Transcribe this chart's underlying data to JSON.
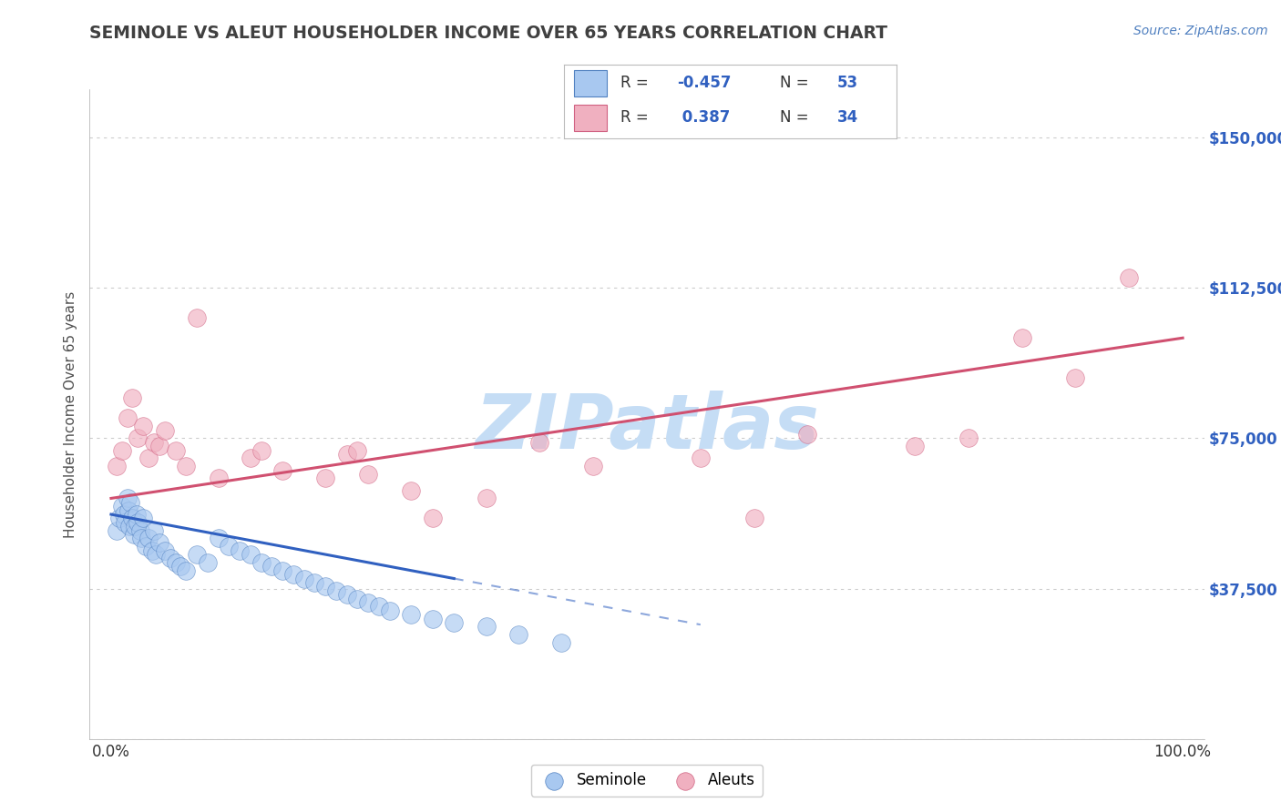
{
  "title": "SEMINOLE VS ALEUT HOUSEHOLDER INCOME OVER 65 YEARS CORRELATION CHART",
  "source_text": "Source: ZipAtlas.com",
  "ylabel": "Householder Income Over 65 years",
  "xlim": [
    -2,
    102
  ],
  "ylim": [
    0,
    162000
  ],
  "yticks": [
    0,
    37500,
    75000,
    112500,
    150000
  ],
  "legend_r1": "-0.457",
  "legend_n1": "53",
  "legend_r2": "0.387",
  "legend_n2": "34",
  "seminole_color": "#a8c8f0",
  "aleut_color": "#f0b0c0",
  "seminole_edge_color": "#5080c0",
  "aleut_edge_color": "#d06080",
  "seminole_line_color": "#3060c0",
  "aleut_line_color": "#d05070",
  "background_color": "#ffffff",
  "grid_color": "#cccccc",
  "title_color": "#404040",
  "axis_label_color": "#505050",
  "watermark_color": "#c5ddf5",
  "right_tick_color": "#3060c0",
  "seminole_x": [
    0.5,
    0.8,
    1.0,
    1.2,
    1.3,
    1.5,
    1.6,
    1.7,
    1.8,
    2.0,
    2.1,
    2.2,
    2.4,
    2.5,
    2.7,
    2.8,
    3.0,
    3.2,
    3.5,
    3.8,
    4.0,
    4.2,
    4.5,
    5.0,
    5.5,
    6.0,
    6.5,
    7.0,
    8.0,
    9.0,
    10.0,
    11.0,
    12.0,
    13.0,
    14.0,
    15.0,
    16.0,
    17.0,
    18.0,
    19.0,
    20.0,
    21.0,
    22.0,
    23.0,
    24.0,
    25.0,
    26.0,
    28.0,
    30.0,
    32.0,
    35.0,
    38.0,
    42.0
  ],
  "seminole_y": [
    52000,
    55000,
    58000,
    56000,
    54000,
    60000,
    57000,
    53000,
    59000,
    55000,
    51000,
    53000,
    56000,
    54000,
    52000,
    50000,
    55000,
    48000,
    50000,
    47000,
    52000,
    46000,
    49000,
    47000,
    45000,
    44000,
    43000,
    42000,
    46000,
    44000,
    50000,
    48000,
    47000,
    46000,
    44000,
    43000,
    42000,
    41000,
    40000,
    39000,
    38000,
    37000,
    36000,
    35000,
    34000,
    33000,
    32000,
    31000,
    30000,
    29000,
    28000,
    26000,
    24000
  ],
  "aleut_x": [
    0.5,
    1.0,
    1.5,
    2.0,
    2.5,
    3.0,
    3.5,
    4.0,
    4.5,
    5.0,
    6.0,
    7.0,
    8.0,
    10.0,
    13.0,
    14.0,
    16.0,
    20.0,
    22.0,
    23.0,
    24.0,
    28.0,
    30.0,
    35.0,
    40.0,
    45.0,
    55.0,
    60.0,
    65.0,
    75.0,
    80.0,
    85.0,
    90.0,
    95.0
  ],
  "aleut_y": [
    68000,
    72000,
    80000,
    85000,
    75000,
    78000,
    70000,
    74000,
    73000,
    77000,
    72000,
    68000,
    105000,
    65000,
    70000,
    72000,
    67000,
    65000,
    71000,
    72000,
    66000,
    62000,
    55000,
    60000,
    74000,
    68000,
    70000,
    55000,
    76000,
    73000,
    75000,
    100000,
    90000,
    115000
  ],
  "sem_intercept": 56000,
  "sem_slope": -500,
  "aleut_intercept": 60000,
  "aleut_slope": 400
}
